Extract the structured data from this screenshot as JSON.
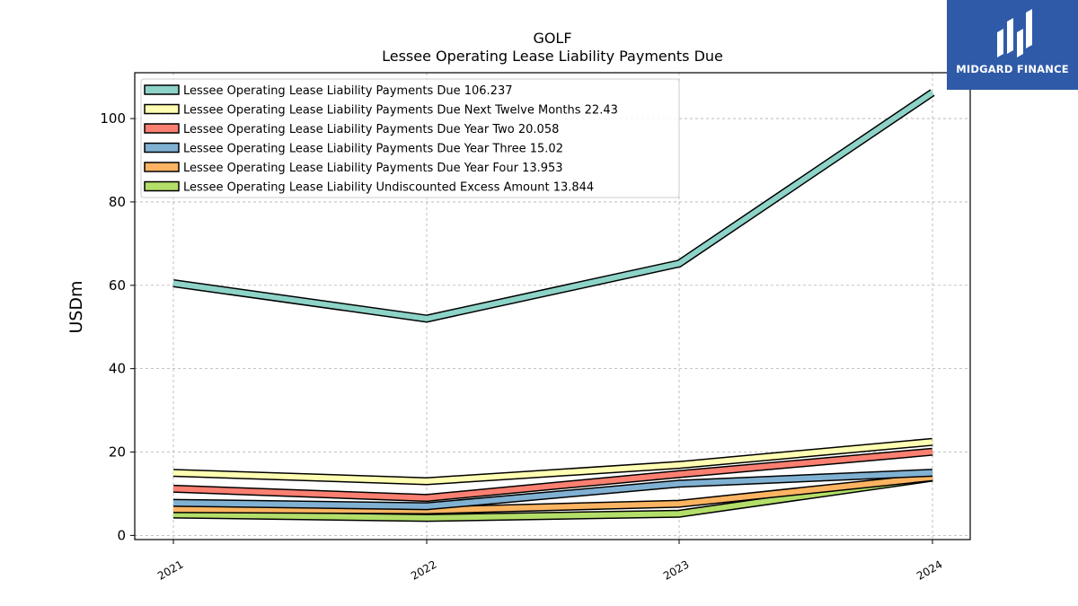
{
  "logo": {
    "text": "MIDGARD FINANCE",
    "color": "#2f5aa8"
  },
  "chart_data": {
    "type": "line",
    "title": "GOLF",
    "subtitle": "Lessee Operating Lease Liability Payments Due",
    "ylabel": "USDm",
    "xlabel": "",
    "x": [
      "2021",
      "2022",
      "2023",
      "2024"
    ],
    "ylim": [
      -1,
      111
    ],
    "yticks": [
      0,
      20,
      40,
      60,
      80,
      100
    ],
    "grid": true,
    "legend_position": "top-left",
    "series": [
      {
        "name": "Lessee Operating Lease Liability Payments Due",
        "legend": "Lessee Operating Lease Liability Payments Due  106.237",
        "color": "#8dd3c7",
        "values": [
          60.5,
          52.0,
          65.2,
          106.237
        ]
      },
      {
        "name": "Lessee Operating Lease Liability Payments Due Next Twelve Months",
        "legend": "Lessee Operating Lease Liability Payments Due Next Twelve Months  22.43",
        "color": "#ffffb3",
        "values": [
          15.0,
          13.0,
          16.9,
          22.43
        ]
      },
      {
        "name": "Lessee Operating Lease Liability Payments Due Year Two",
        "legend": "Lessee Operating Lease Liability Payments Due Year Two  20.058",
        "color": "#fb8072",
        "values": [
          11.2,
          9.0,
          14.7,
          20.058
        ]
      },
      {
        "name": "Lessee Operating Lease Liability Payments Due Year Three",
        "legend": "Lessee Operating Lease Liability Payments Due Year Three  15.02",
        "color": "#80b1d3",
        "values": [
          7.8,
          7.0,
          12.4,
          15.02
        ]
      },
      {
        "name": "Lessee Operating Lease Liability Payments Due Year Four",
        "legend": "Lessee Operating Lease Liability Payments Due Year Four  13.953",
        "color": "#fdb462",
        "values": [
          6.3,
          6.0,
          7.6,
          13.953
        ]
      },
      {
        "name": "Lessee Operating Lease Liability Undiscounted Excess Amount",
        "legend": "Lessee Operating Lease Liability Undiscounted Excess Amount  13.844",
        "color": "#b3de69",
        "values": [
          5.0,
          4.2,
          5.2,
          13.844
        ]
      }
    ]
  }
}
